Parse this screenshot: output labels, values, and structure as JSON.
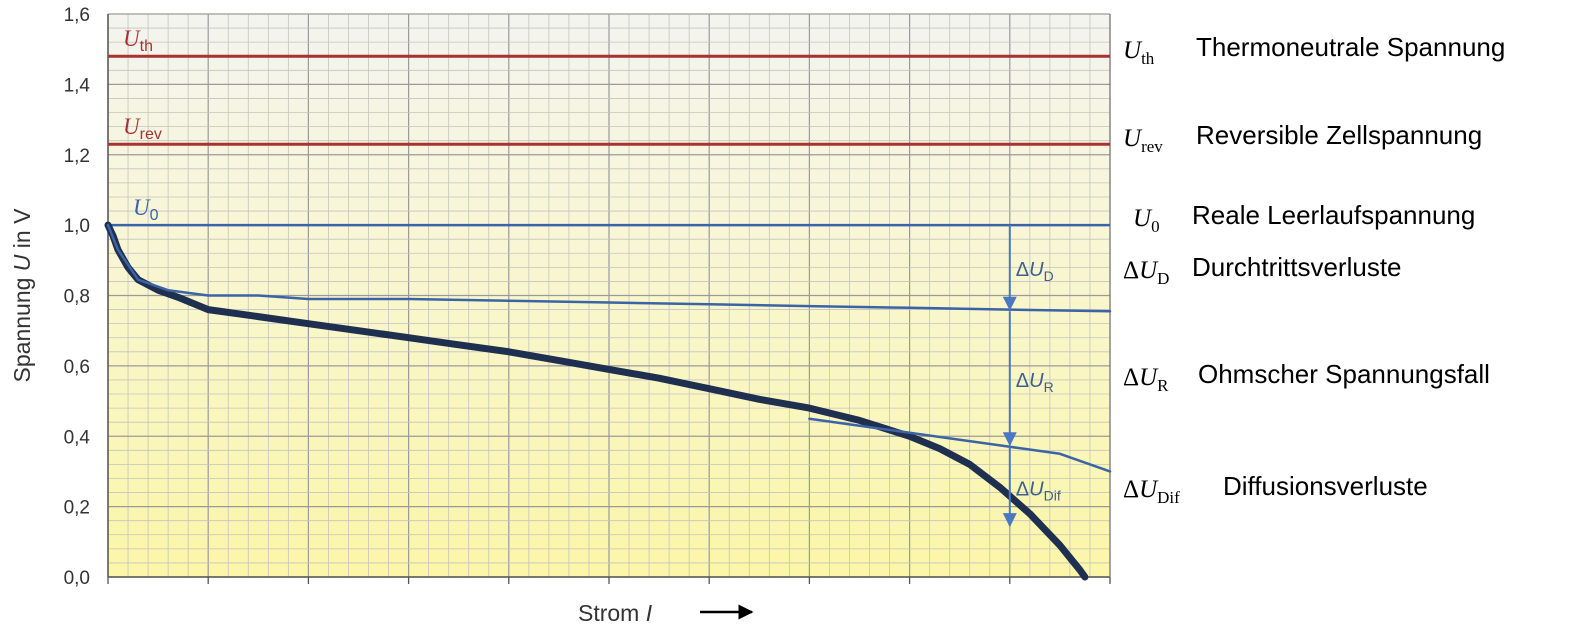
{
  "chart_data": {
    "type": "line",
    "xlabel": "Strom I",
    "ylabel": "Spannung U in V",
    "xlim": [
      0,
      10
    ],
    "ylim": [
      0,
      1.6
    ],
    "y_ticks": [
      "0,0",
      "0,2",
      "0,4",
      "0,6",
      "0,8",
      "1,0",
      "1,2",
      "1,4",
      "1,6"
    ],
    "x_ticks_count": 10,
    "grid": true,
    "reference_lines": [
      {
        "id": "uth",
        "symbol": "U",
        "sub": "th",
        "y": 1.48,
        "color": "#a83232"
      },
      {
        "id": "urev",
        "symbol": "U",
        "sub": "rev",
        "y": 1.23,
        "color": "#a83232"
      },
      {
        "id": "u0",
        "symbol": "U",
        "sub": "0",
        "y": 1.0,
        "color": "#3a64a6"
      }
    ],
    "series": [
      {
        "id": "kennlinie",
        "color": "#1f2f4f",
        "points": [
          [
            0,
            1.0
          ],
          [
            0.05,
            0.97
          ],
          [
            0.1,
            0.93
          ],
          [
            0.2,
            0.88
          ],
          [
            0.3,
            0.845
          ],
          [
            0.5,
            0.815
          ],
          [
            0.7,
            0.795
          ],
          [
            1.0,
            0.76
          ],
          [
            1.5,
            0.74
          ],
          [
            2,
            0.72
          ],
          [
            2.5,
            0.7
          ],
          [
            3,
            0.68
          ],
          [
            3.5,
            0.66
          ],
          [
            4,
            0.64
          ],
          [
            4.5,
            0.615
          ],
          [
            5,
            0.59
          ],
          [
            5.5,
            0.565
          ],
          [
            6,
            0.535
          ],
          [
            6.5,
            0.505
          ],
          [
            7,
            0.48
          ],
          [
            7.5,
            0.445
          ],
          [
            8,
            0.4
          ],
          [
            8.3,
            0.365
          ],
          [
            8.6,
            0.32
          ],
          [
            8.9,
            0.255
          ],
          [
            9.2,
            0.18
          ],
          [
            9.5,
            0.09
          ],
          [
            9.7,
            0.02
          ],
          [
            9.75,
            0.0
          ]
        ]
      },
      {
        "id": "ohmsch",
        "color": "#3a64a6",
        "points": [
          [
            0,
            1.0
          ],
          [
            0.1,
            0.93
          ],
          [
            0.3,
            0.845
          ],
          [
            0.6,
            0.815
          ],
          [
            1,
            0.8
          ],
          [
            1.5,
            0.8
          ],
          [
            2,
            0.79
          ],
          [
            3,
            0.79
          ],
          [
            4,
            0.785
          ],
          [
            5,
            0.78
          ],
          [
            6,
            0.775
          ],
          [
            7,
            0.77
          ],
          [
            8,
            0.765
          ],
          [
            9,
            0.76
          ],
          [
            10,
            0.755
          ]
        ]
      },
      {
        "id": "diffusion",
        "color": "#3a64a6",
        "points": [
          [
            7,
            0.45
          ],
          [
            7.5,
            0.43
          ],
          [
            8,
            0.41
          ],
          [
            8.5,
            0.39
          ],
          [
            9,
            0.37
          ],
          [
            9.5,
            0.35
          ],
          [
            10,
            0.3
          ]
        ]
      }
    ],
    "arrows": [
      {
        "id": "arrow-d",
        "x": 9.0,
        "y_from": 1.0,
        "y_to": 0.755,
        "symbol": "U",
        "sub": "D"
      },
      {
        "id": "arrow-r",
        "x": 9.0,
        "y_from": 0.755,
        "y_to": 0.37,
        "symbol": "U",
        "sub": "R"
      },
      {
        "id": "arrow-dif",
        "x": 9.0,
        "y_from": 0.37,
        "y_to": 0.14,
        "symbol": "U",
        "sub": "Dif"
      }
    ],
    "legend": [
      {
        "id": "legend-uth",
        "prefix": "",
        "symbol": "U",
        "sub": "th",
        "text": "Thermoneutrale Spannung"
      },
      {
        "id": "legend-urev",
        "prefix": "",
        "symbol": "U",
        "sub": "rev",
        "text": "Reversible Zellspannung"
      },
      {
        "id": "legend-u0",
        "prefix": "",
        "symbol": "U",
        "sub": "0",
        "text": "Reale Leerlaufspannung"
      },
      {
        "id": "legend-ud",
        "prefix": "Δ",
        "symbol": "U",
        "sub": "D",
        "text": "Durchtrittsverluste"
      },
      {
        "id": "legend-ur",
        "prefix": "Δ",
        "symbol": "U",
        "sub": "R",
        "text": "Ohmscher Spannungsfall"
      },
      {
        "id": "legend-udif",
        "prefix": "Δ",
        "symbol": "U",
        "sub": "Dif",
        "text": "Diffusionsverluste"
      }
    ]
  }
}
